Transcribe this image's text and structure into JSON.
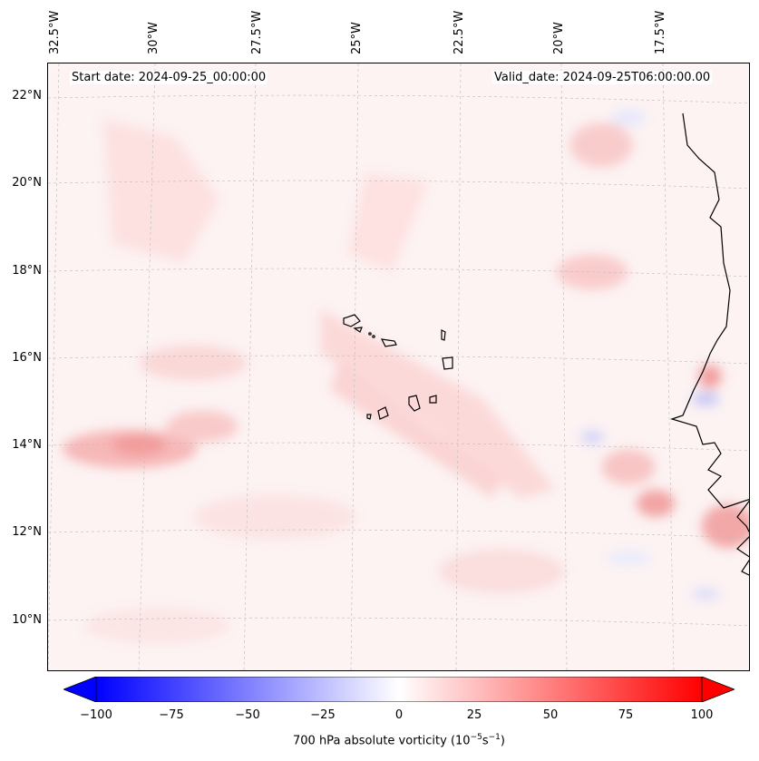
{
  "map": {
    "start_date": "Start date: 2024-09-25_00:00:00",
    "valid_date": "Valid_date: 2024-09-25T06:00:00.00",
    "longitude_labels": [
      "32.5°W",
      "30°W",
      "27.5°W",
      "25°W",
      "22.5°W",
      "20°W",
      "17.5°W"
    ],
    "latitude_labels": [
      "22°N",
      "20°N",
      "18°N",
      "16°N",
      "14°N",
      "12°N",
      "10°N"
    ],
    "gridlines": true,
    "coastline": "black",
    "islands": "Cape Verde"
  },
  "colorbar": {
    "ticks": [
      "−100",
      "−75",
      "−50",
      "−25",
      "0",
      "25",
      "50",
      "75",
      "100"
    ],
    "label": "700 hPa absolute vorticity (10",
    "label_exp1": "−5",
    "label_mid": "s",
    "label_exp2": "−1",
    "label_end": ")",
    "min": -100,
    "max": 100,
    "colormap": "bwr",
    "extend": "both"
  }
}
